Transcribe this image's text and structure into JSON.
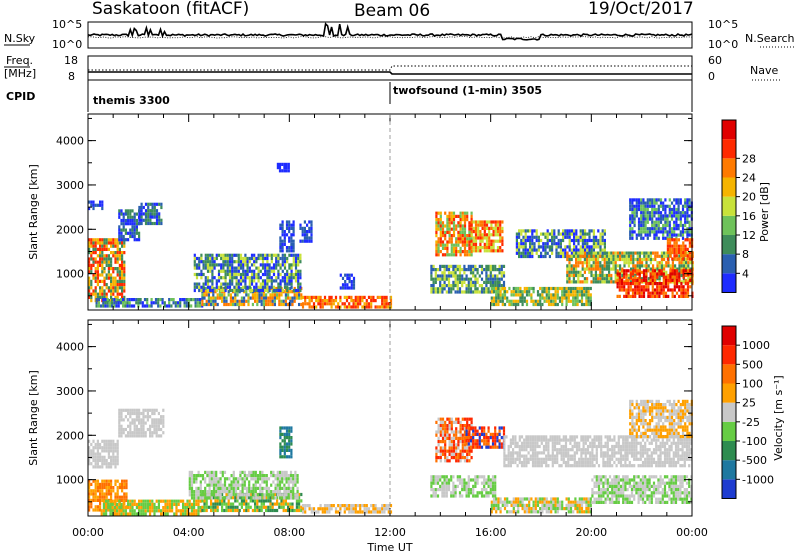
{
  "header": {
    "station": "Saskatoon (fitACF)",
    "beam": "Beam 06",
    "date": "19/Oct/2017"
  },
  "noise_panel": {
    "left_label": "N.Sky",
    "right_label": "N.Search",
    "tick_labels": [
      "10^5",
      "10^0"
    ],
    "right_tick_labels": [
      "10^5",
      "10^0"
    ]
  },
  "freq_panel": {
    "left_label_line1": "Freq.",
    "left_label_line2": "[MHz]",
    "left_ticks": [
      "18",
      "8"
    ],
    "right_label": "Nave",
    "right_ticks": [
      "60",
      "0"
    ]
  },
  "cpid_panel": {
    "label": "CPID",
    "segments": [
      {
        "name": "themis 3300",
        "start_hour": 0
      },
      {
        "name": "twofsound (1-min) 3505",
        "start_hour": 12
      }
    ]
  },
  "chart_data": [
    {
      "type": "heatmap",
      "name": "power",
      "ylabel": "Slant Range [km]",
      "xlabel": "",
      "ylim": [
        180,
        4600
      ],
      "yticks": [
        1000,
        2000,
        3000,
        4000
      ],
      "xlim": [
        0,
        24
      ],
      "colorbar": {
        "label": "Power [dB]",
        "ticks": [
          "4",
          "8",
          "12",
          "16",
          "20",
          "24",
          "28"
        ],
        "colors": [
          "#1e2cff",
          "#2a5fb0",
          "#3e8c5a",
          "#6ec25a",
          "#c8e23a",
          "#f5b400",
          "#ff7a00",
          "#ff2a00",
          "#e00000"
        ]
      },
      "regions": [
        {
          "t0": 0.0,
          "t1": 1.4,
          "r0": 400,
          "r1": 1800,
          "c": [
            2,
            5,
            7
          ]
        },
        {
          "t0": 0.0,
          "t1": 0.6,
          "r0": 2450,
          "r1": 2650,
          "c": [
            0,
            1
          ]
        },
        {
          "t0": 1.2,
          "t1": 2.0,
          "r0": 1800,
          "r1": 2450,
          "c": [
            0,
            1,
            2
          ]
        },
        {
          "t0": 2.0,
          "t1": 2.9,
          "r0": 2100,
          "r1": 2600,
          "c": [
            0,
            1,
            2
          ]
        },
        {
          "t0": 0.3,
          "t1": 4.5,
          "r0": 250,
          "r1": 450,
          "c": [
            0,
            1,
            2,
            3
          ]
        },
        {
          "t0": 4.5,
          "t1": 8.5,
          "r0": 300,
          "r1": 700,
          "c": [
            1,
            3,
            5,
            6
          ]
        },
        {
          "t0": 8.5,
          "t1": 12.0,
          "r0": 250,
          "r1": 500,
          "c": [
            5,
            6,
            7
          ]
        },
        {
          "t0": 4.2,
          "t1": 8.4,
          "r0": 600,
          "r1": 1450,
          "c": [
            0,
            1,
            2,
            4
          ]
        },
        {
          "t0": 7.6,
          "t1": 8.2,
          "r0": 1500,
          "r1": 2200,
          "c": [
            0,
            1
          ]
        },
        {
          "t0": 8.4,
          "t1": 8.9,
          "r0": 1700,
          "r1": 2200,
          "c": [
            0,
            1
          ]
        },
        {
          "t0": 10.0,
          "t1": 10.6,
          "r0": 700,
          "r1": 1000,
          "c": [
            0,
            1
          ]
        },
        {
          "t0": 7.5,
          "t1": 8.0,
          "r0": 3300,
          "r1": 3500,
          "c": [
            0
          ]
        },
        {
          "t0": 13.8,
          "t1": 15.2,
          "r0": 1400,
          "r1": 2400,
          "c": [
            3,
            5,
            6,
            7
          ]
        },
        {
          "t0": 15.2,
          "t1": 16.5,
          "r0": 1500,
          "r1": 2200,
          "c": [
            4,
            6,
            7
          ]
        },
        {
          "t0": 13.6,
          "t1": 16.5,
          "r0": 600,
          "r1": 1200,
          "c": [
            1,
            2,
            4
          ]
        },
        {
          "t0": 16.0,
          "t1": 20.0,
          "r0": 300,
          "r1": 700,
          "c": [
            2,
            3,
            5
          ]
        },
        {
          "t0": 17.0,
          "t1": 20.5,
          "r0": 1400,
          "r1": 2000,
          "c": [
            0,
            1,
            2,
            4
          ]
        },
        {
          "t0": 19.0,
          "t1": 24.0,
          "r0": 800,
          "r1": 1500,
          "c": [
            2,
            4,
            6
          ]
        },
        {
          "t0": 21.0,
          "t1": 24.0,
          "r0": 500,
          "r1": 1100,
          "c": [
            6,
            7,
            8
          ]
        },
        {
          "t0": 21.5,
          "t1": 24.0,
          "r0": 1800,
          "r1": 2700,
          "c": [
            0,
            1,
            3
          ]
        },
        {
          "t0": 23.0,
          "t1": 24.0,
          "r0": 1300,
          "r1": 1800,
          "c": [
            6,
            7
          ]
        }
      ]
    },
    {
      "type": "heatmap",
      "name": "velocity",
      "ylabel": "Slant Range [km]",
      "xlabel": "Time UT",
      "ylim": [
        180,
        4600
      ],
      "yticks": [
        1000,
        2000,
        3000,
        4000
      ],
      "xlim": [
        0,
        24
      ],
      "xticks": [
        "00:00",
        "04:00",
        "08:00",
        "12:00",
        "16:00",
        "20:00",
        "00:00"
      ],
      "colorbar": {
        "label": "Velocity [m s⁻¹]",
        "ticks": [
          "1000",
          "500",
          "100",
          "25",
          "-25",
          "-100",
          "-500",
          "-1000"
        ],
        "colors": [
          "#1e3cd0",
          "#1e78a0",
          "#2e8c50",
          "#66cc44",
          "#c8c8c8",
          "#ffa000",
          "#ff7000",
          "#ff2800",
          "#e00000"
        ]
      },
      "regions": [
        {
          "t0": 0.0,
          "t1": 1.5,
          "r0": 300,
          "r1": 1000,
          "c": [
            5,
            6
          ]
        },
        {
          "t0": 0.0,
          "t1": 1.2,
          "r0": 1300,
          "r1": 1900,
          "c": [
            4
          ]
        },
        {
          "t0": 1.2,
          "t1": 3.0,
          "r0": 2000,
          "r1": 2600,
          "c": [
            4
          ]
        },
        {
          "t0": 0.5,
          "t1": 4.5,
          "r0": 250,
          "r1": 550,
          "c": [
            5,
            3
          ]
        },
        {
          "t0": 4.5,
          "t1": 8.5,
          "r0": 300,
          "r1": 700,
          "c": [
            3,
            2,
            5
          ]
        },
        {
          "t0": 4.0,
          "t1": 8.3,
          "r0": 600,
          "r1": 1200,
          "c": [
            4,
            3
          ]
        },
        {
          "t0": 8.5,
          "t1": 12.0,
          "r0": 250,
          "r1": 450,
          "c": [
            5,
            4
          ]
        },
        {
          "t0": 7.6,
          "t1": 8.1,
          "r0": 1500,
          "r1": 2200,
          "c": [
            1,
            2
          ]
        },
        {
          "t0": 13.8,
          "t1": 15.2,
          "r0": 1400,
          "r1": 2400,
          "c": [
            6,
            7,
            4
          ]
        },
        {
          "t0": 15.0,
          "t1": 16.5,
          "r0": 1700,
          "r1": 2200,
          "c": [
            6,
            7,
            0
          ]
        },
        {
          "t0": 16.5,
          "t1": 24.0,
          "r0": 1300,
          "r1": 2000,
          "c": [
            4
          ]
        },
        {
          "t0": 13.6,
          "t1": 16.2,
          "r0": 600,
          "r1": 1100,
          "c": [
            4,
            3
          ]
        },
        {
          "t0": 16.0,
          "t1": 20.0,
          "r0": 250,
          "r1": 600,
          "c": [
            4,
            5,
            3
          ]
        },
        {
          "t0": 20.0,
          "t1": 24.0,
          "r0": 500,
          "r1": 1100,
          "c": [
            4,
            3
          ]
        },
        {
          "t0": 21.5,
          "t1": 24.0,
          "r0": 2000,
          "r1": 2800,
          "c": [
            4,
            5
          ]
        }
      ]
    }
  ]
}
